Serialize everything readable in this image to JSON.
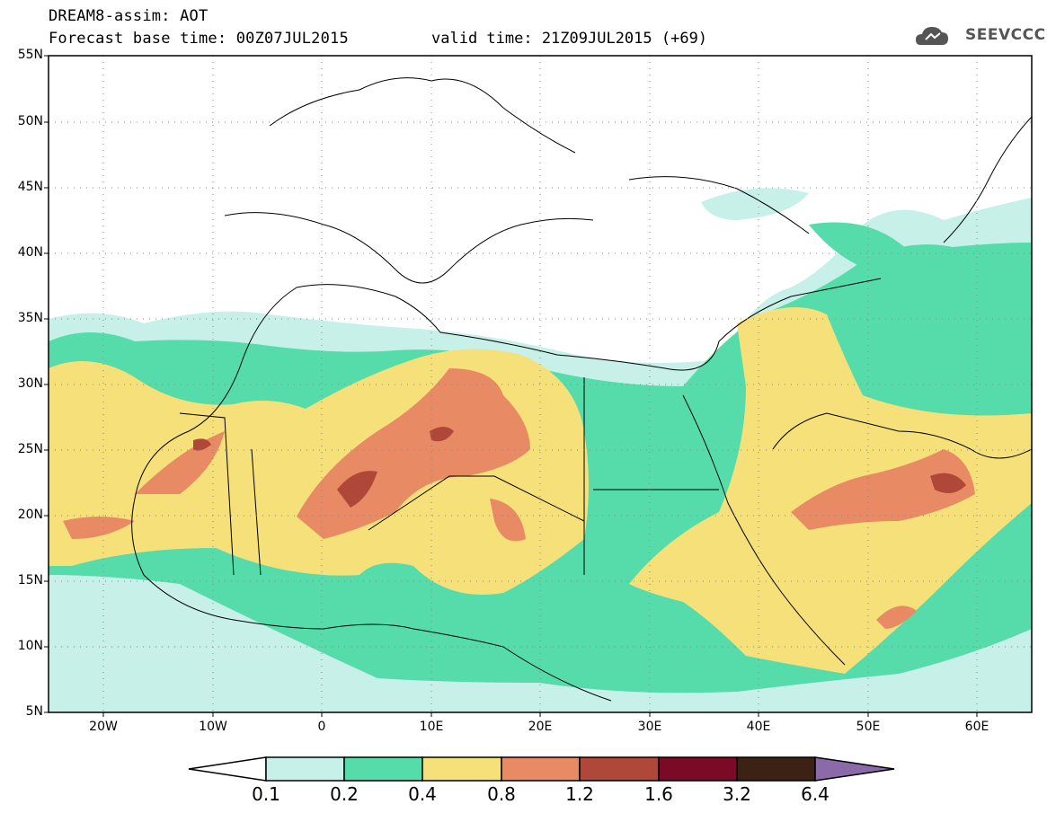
{
  "header": {
    "title": "DREAM8-assim: AOT",
    "base_time": "Forecast base time: 00Z07JUL2015",
    "valid_time": "valid time: 21Z09JUL2015 (+69)",
    "logo_text": "SEEVCCC"
  },
  "map": {
    "region": "North Africa, Mediterranean, Middle East",
    "variable": "Aerosol Optical Thickness",
    "lon_range": [
      -25,
      65
    ],
    "lat_range": [
      5,
      55
    ],
    "lat_labels": [
      "55N",
      "50N",
      "45N",
      "40N",
      "35N",
      "30N",
      "25N",
      "20N",
      "15N",
      "10N",
      "5N"
    ],
    "lon_labels": [
      "20W",
      "10W",
      "0",
      "10E",
      "20E",
      "30E",
      "40E",
      "50E",
      "60E"
    ],
    "grid": "dotted"
  },
  "colorbar": {
    "levels": [
      "0.1",
      "0.2",
      "0.4",
      "0.8",
      "1.2",
      "1.6",
      "3.2",
      "6.4"
    ],
    "colors": [
      "#ffffff",
      "#c6f0e8",
      "#56dcaa",
      "#f5e07a",
      "#e88a64",
      "#b0483a",
      "#7a0a26",
      "#3c2214",
      "#8a6aa8"
    ]
  }
}
